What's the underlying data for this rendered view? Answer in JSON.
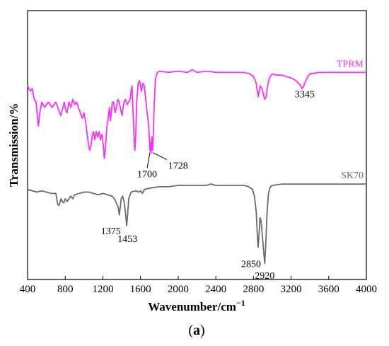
{
  "chart_data": {
    "type": "line",
    "xlabel": "Wavenumber/cm",
    "xlabel_superscript": "−1",
    "ylabel": "Transmission/%",
    "xlim": [
      400,
      4000
    ],
    "ylim": [
      0,
      100
    ],
    "y_ticks_shown": false,
    "x_ticks": [
      "400",
      "800",
      "1200",
      "1600",
      "2000",
      "2400",
      "2800",
      "3200",
      "3600",
      "4000"
    ],
    "panel_label_open": "(",
    "panel_label_letter": "a",
    "panel_label_close": ")",
    "series": [
      {
        "name": "TPRM",
        "color": "#ff2cff",
        "points": [
          [
            400,
            72
          ],
          [
            430,
            70
          ],
          [
            450,
            71
          ],
          [
            470,
            67
          ],
          [
            490,
            66
          ],
          [
            505,
            60
          ],
          [
            515,
            57
          ],
          [
            530,
            62
          ],
          [
            550,
            66
          ],
          [
            580,
            64
          ],
          [
            620,
            66
          ],
          [
            660,
            64
          ],
          [
            700,
            66
          ],
          [
            730,
            63
          ],
          [
            755,
            61
          ],
          [
            775,
            64
          ],
          [
            790,
            66
          ],
          [
            805,
            63
          ],
          [
            820,
            62
          ],
          [
            840,
            66
          ],
          [
            860,
            64
          ],
          [
            880,
            67
          ],
          [
            900,
            65
          ],
          [
            920,
            66
          ],
          [
            940,
            64
          ],
          [
            960,
            62
          ],
          [
            980,
            60
          ],
          [
            1000,
            62
          ],
          [
            1020,
            58
          ],
          [
            1040,
            52
          ],
          [
            1060,
            48
          ],
          [
            1075,
            50
          ],
          [
            1090,
            54
          ],
          [
            1100,
            55
          ],
          [
            1115,
            52
          ],
          [
            1130,
            55
          ],
          [
            1145,
            53
          ],
          [
            1160,
            55
          ],
          [
            1175,
            52
          ],
          [
            1190,
            54
          ],
          [
            1205,
            50
          ],
          [
            1215,
            45
          ],
          [
            1228,
            49
          ],
          [
            1240,
            56
          ],
          [
            1255,
            60
          ],
          [
            1270,
            64
          ],
          [
            1280,
            59
          ],
          [
            1290,
            62
          ],
          [
            1300,
            66
          ],
          [
            1315,
            66
          ],
          [
            1330,
            62
          ],
          [
            1345,
            64
          ],
          [
            1360,
            67
          ],
          [
            1375,
            66
          ],
          [
            1390,
            63
          ],
          [
            1405,
            61
          ],
          [
            1415,
            64
          ],
          [
            1425,
            66
          ],
          [
            1440,
            67
          ],
          [
            1460,
            65
          ],
          [
            1475,
            66
          ],
          [
            1490,
            67
          ],
          [
            1500,
            70
          ],
          [
            1510,
            72
          ],
          [
            1520,
            63
          ],
          [
            1530,
            54
          ],
          [
            1540,
            48
          ],
          [
            1548,
            52
          ],
          [
            1560,
            66
          ],
          [
            1575,
            73
          ],
          [
            1590,
            74
          ],
          [
            1600,
            72
          ],
          [
            1610,
            70
          ],
          [
            1625,
            73
          ],
          [
            1640,
            72
          ],
          [
            1655,
            67
          ],
          [
            1670,
            62
          ],
          [
            1685,
            58
          ],
          [
            1695,
            52
          ],
          [
            1700,
            48
          ],
          [
            1705,
            51
          ],
          [
            1710,
            47
          ],
          [
            1716,
            49
          ],
          [
            1720,
            53
          ],
          [
            1728,
            48
          ],
          [
            1735,
            53
          ],
          [
            1745,
            65
          ],
          [
            1760,
            75
          ],
          [
            1780,
            77
          ],
          [
            1800,
            77.5
          ],
          [
            1900,
            77
          ],
          [
            2000,
            77.5
          ],
          [
            2100,
            77
          ],
          [
            2150,
            78
          ],
          [
            2200,
            77
          ],
          [
            2300,
            77.5
          ],
          [
            2400,
            77
          ],
          [
            2500,
            77
          ],
          [
            2600,
            77
          ],
          [
            2700,
            77
          ],
          [
            2760,
            76.5
          ],
          [
            2800,
            75.5
          ],
          [
            2830,
            73
          ],
          [
            2850,
            68
          ],
          [
            2860,
            70
          ],
          [
            2875,
            72
          ],
          [
            2890,
            71
          ],
          [
            2905,
            69
          ],
          [
            2920,
            67
          ],
          [
            2935,
            68
          ],
          [
            2950,
            72
          ],
          [
            2970,
            75
          ],
          [
            3000,
            76.5
          ],
          [
            3050,
            76
          ],
          [
            3100,
            76
          ],
          [
            3150,
            75.5
          ],
          [
            3200,
            75
          ],
          [
            3250,
            74
          ],
          [
            3280,
            73
          ],
          [
            3300,
            72
          ],
          [
            3315,
            71
          ],
          [
            3330,
            71.5
          ],
          [
            3345,
            73
          ],
          [
            3370,
            75
          ],
          [
            3400,
            76.5
          ],
          [
            3500,
            77
          ],
          [
            3600,
            77
          ],
          [
            3700,
            77
          ],
          [
            3800,
            77
          ],
          [
            3900,
            77
          ],
          [
            4000,
            77
          ]
        ]
      },
      {
        "name": "SK70",
        "color": "#6b6b6b",
        "points": [
          [
            400,
            33.5
          ],
          [
            450,
            33
          ],
          [
            500,
            32.5
          ],
          [
            550,
            33
          ],
          [
            600,
            32.5
          ],
          [
            650,
            32
          ],
          [
            700,
            32
          ],
          [
            720,
            28
          ],
          [
            735,
            27.5
          ],
          [
            755,
            30
          ],
          [
            770,
            29
          ],
          [
            785,
            28.5
          ],
          [
            800,
            30
          ],
          [
            820,
            29
          ],
          [
            840,
            30
          ],
          [
            860,
            31
          ],
          [
            880,
            30
          ],
          [
            900,
            31.5
          ],
          [
            950,
            32
          ],
          [
            1000,
            32.5
          ],
          [
            1050,
            32.5
          ],
          [
            1100,
            32
          ],
          [
            1150,
            31.5
          ],
          [
            1200,
            32
          ],
          [
            1250,
            31.5
          ],
          [
            1300,
            31
          ],
          [
            1330,
            29.5
          ],
          [
            1350,
            28
          ],
          [
            1365,
            26.5
          ],
          [
            1375,
            24
          ],
          [
            1385,
            27
          ],
          [
            1395,
            30
          ],
          [
            1410,
            31
          ],
          [
            1425,
            29
          ],
          [
            1440,
            25
          ],
          [
            1453,
            20
          ],
          [
            1463,
            24
          ],
          [
            1475,
            30
          ],
          [
            1500,
            32.5
          ],
          [
            1550,
            33
          ],
          [
            1580,
            32.5
          ],
          [
            1600,
            33
          ],
          [
            1620,
            32
          ],
          [
            1640,
            33.5
          ],
          [
            1700,
            34
          ],
          [
            1800,
            34.5
          ],
          [
            1900,
            34.5
          ],
          [
            2000,
            35
          ],
          [
            2100,
            35
          ],
          [
            2200,
            35
          ],
          [
            2300,
            35
          ],
          [
            2350,
            35.5
          ],
          [
            2400,
            35
          ],
          [
            2500,
            35
          ],
          [
            2600,
            35
          ],
          [
            2700,
            35
          ],
          [
            2750,
            34.5
          ],
          [
            2790,
            33.5
          ],
          [
            2810,
            31
          ],
          [
            2830,
            25
          ],
          [
            2843,
            15
          ],
          [
            2850,
            12
          ],
          [
            2860,
            17
          ],
          [
            2870,
            23
          ],
          [
            2880,
            22
          ],
          [
            2895,
            16
          ],
          [
            2910,
            10
          ],
          [
            2920,
            6
          ],
          [
            2930,
            12
          ],
          [
            2945,
            25
          ],
          [
            2960,
            32
          ],
          [
            2980,
            34.5
          ],
          [
            3000,
            35
          ],
          [
            3100,
            35.5
          ],
          [
            3200,
            35.5
          ],
          [
            3300,
            35.5
          ],
          [
            3400,
            35.5
          ],
          [
            3500,
            35.5
          ],
          [
            3600,
            35.5
          ],
          [
            3700,
            35.5
          ],
          [
            3800,
            35.5
          ],
          [
            3900,
            35.5
          ],
          [
            4000,
            35.5
          ]
        ]
      }
    ],
    "annotations": [
      {
        "text": "3345",
        "x": 3345,
        "series": "TPRM"
      },
      {
        "text": "1700",
        "x": 1700,
        "series": "TPRM"
      },
      {
        "text": "1728",
        "x": 1728,
        "series": "TPRM"
      },
      {
        "text": "1375",
        "x": 1375,
        "series": "SK70"
      },
      {
        "text": "1453",
        "x": 1453,
        "series": "SK70"
      },
      {
        "text": "2850",
        "x": 2850,
        "series": "SK70"
      },
      {
        "text": "2920",
        "x": 2920,
        "series": "SK70"
      }
    ]
  }
}
